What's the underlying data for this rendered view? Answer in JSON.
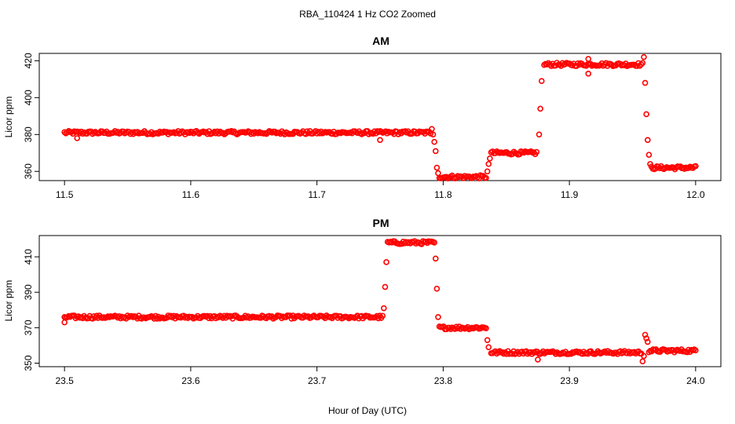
{
  "figure": {
    "title": "RBA_110424  1 Hz CO2 Zoomed",
    "xlabel": "Hour of Day (UTC)",
    "point_color": "#ff0000"
  },
  "chart_data": [
    {
      "type": "scatter",
      "title": "AM",
      "xlabel": "Hour of Day (UTC)",
      "ylabel": "Licor ppm",
      "xlim": [
        11.48,
        12.02
      ],
      "ylim": [
        355,
        424
      ],
      "xticks": [
        "11.5",
        "11.6",
        "11.7",
        "11.8",
        "11.9",
        "12.0"
      ],
      "yticks": [
        "360",
        "380",
        "400",
        "420"
      ],
      "segments": [
        {
          "x0": 11.5,
          "x1": 11.79,
          "y": 381
        },
        {
          "x0": 11.797,
          "x1": 11.834,
          "y": 357
        },
        {
          "x0": 11.838,
          "x1": 11.874,
          "y": 370
        },
        {
          "x0": 11.88,
          "x1": 11.958,
          "y": 418
        },
        {
          "x0": 11.965,
          "x1": 12.0,
          "y": 362
        }
      ],
      "transitions": [
        {
          "x": 11.791,
          "y": 383
        },
        {
          "x": 11.792,
          "y": 380
        },
        {
          "x": 11.793,
          "y": 376
        },
        {
          "x": 11.794,
          "y": 371
        },
        {
          "x": 11.795,
          "y": 362
        },
        {
          "x": 11.796,
          "y": 359
        },
        {
          "x": 11.835,
          "y": 360
        },
        {
          "x": 11.836,
          "y": 364
        },
        {
          "x": 11.837,
          "y": 367
        },
        {
          "x": 11.876,
          "y": 380
        },
        {
          "x": 11.877,
          "y": 394
        },
        {
          "x": 11.878,
          "y": 409
        },
        {
          "x": 11.959,
          "y": 422
        },
        {
          "x": 11.96,
          "y": 408
        },
        {
          "x": 11.961,
          "y": 391
        },
        {
          "x": 11.962,
          "y": 377
        },
        {
          "x": 11.963,
          "y": 369
        },
        {
          "x": 11.964,
          "y": 364
        },
        {
          "x": 11.75,
          "y": 377
        },
        {
          "x": 11.915,
          "y": 413
        },
        {
          "x": 11.915,
          "y": 421
        },
        {
          "x": 11.51,
          "y": 378
        }
      ]
    },
    {
      "type": "scatter",
      "title": "PM",
      "xlabel": "Hour of Day (UTC)",
      "ylabel": "Licor ppm",
      "xlim": [
        23.48,
        24.02
      ],
      "ylim": [
        348,
        422
      ],
      "xticks": [
        "23.5",
        "23.6",
        "23.7",
        "23.8",
        "23.9",
        "24.0"
      ],
      "yticks": [
        "350",
        "370",
        "390",
        "410"
      ],
      "segments": [
        {
          "x0": 23.5,
          "x1": 23.752,
          "y": 376
        },
        {
          "x0": 23.756,
          "x1": 23.793,
          "y": 418
        },
        {
          "x0": 23.797,
          "x1": 23.834,
          "y": 370
        },
        {
          "x0": 23.838,
          "x1": 23.957,
          "y": 356
        },
        {
          "x0": 23.963,
          "x1": 24.0,
          "y": 357
        }
      ],
      "transitions": [
        {
          "x": 23.5,
          "y": 373
        },
        {
          "x": 23.753,
          "y": 381
        },
        {
          "x": 23.754,
          "y": 393
        },
        {
          "x": 23.755,
          "y": 407
        },
        {
          "x": 23.794,
          "y": 409
        },
        {
          "x": 23.795,
          "y": 392
        },
        {
          "x": 23.796,
          "y": 376
        },
        {
          "x": 23.835,
          "y": 363
        },
        {
          "x": 23.836,
          "y": 359
        },
        {
          "x": 23.875,
          "y": 352
        },
        {
          "x": 23.958,
          "y": 351
        },
        {
          "x": 23.959,
          "y": 354
        },
        {
          "x": 23.96,
          "y": 366
        },
        {
          "x": 23.961,
          "y": 364
        },
        {
          "x": 23.962,
          "y": 362
        }
      ]
    }
  ]
}
